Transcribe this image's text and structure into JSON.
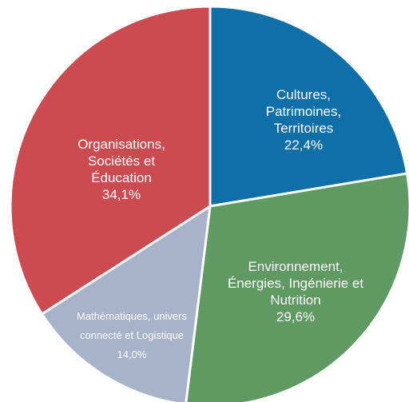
{
  "chart_data": {
    "type": "pie",
    "categories": [
      "Cultures, Patrimoines, Territoires",
      "Environnement, Énergies, Ingénierie et Nutrition",
      "Mathématiques, univers connecté et Logistique",
      "Organisations, Sociétés et Éducation"
    ],
    "values": [
      22.4,
      29.6,
      14.0,
      34.1
    ],
    "value_labels": [
      "22,4%",
      "29,6%",
      "14,0%",
      "34,1%"
    ],
    "colors": [
      "#0f6fa8",
      "#5f9a62",
      "#a7b3c9",
      "#cc4b50"
    ]
  }
}
